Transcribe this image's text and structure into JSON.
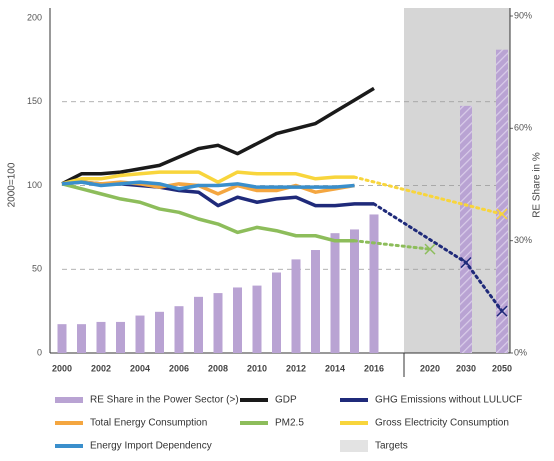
{
  "chart_data": {
    "type": "combo",
    "y_label": "2000=100",
    "y2_label": "RE Share in %",
    "categories": [
      "2000",
      null,
      "2002",
      null,
      "2004",
      null,
      "2006",
      null,
      "2008",
      null,
      "2010",
      null,
      "2012",
      null,
      "2014",
      null,
      "2016",
      "2020",
      "2030",
      "2050"
    ],
    "ylim": [
      0,
      200
    ],
    "yticks": [
      0,
      50,
      100,
      150,
      200
    ],
    "y2lim": [
      0,
      90
    ],
    "y2ticks": [
      {
        "value": 0,
        "label": "0%"
      },
      {
        "value": 30,
        "label": "30%"
      },
      {
        "value": 60,
        "label": "60%"
      },
      {
        "value": 90,
        "label": "90%"
      }
    ],
    "grid": true,
    "target_label": "Targets",
    "series": [
      {
        "name": "RE Share in the Power Sector (>)",
        "type": "bar",
        "axis": "y2",
        "color": "#b9a3d3",
        "values": [
          7.7,
          7.7,
          8.3,
          8.3,
          10,
          11,
          12.5,
          15,
          16,
          17.5,
          18,
          21.5,
          25,
          27.5,
          32,
          33,
          37,
          null,
          66,
          81
        ]
      },
      {
        "name": "GDP",
        "type": "line",
        "color": "#1a1a1a",
        "values": [
          101,
          107,
          107,
          108,
          110,
          112,
          117,
          122,
          124,
          119,
          125,
          131,
          134,
          137,
          144,
          151,
          158,
          null,
          null,
          null
        ]
      },
      {
        "name": "GHG Emissions without LULUCF",
        "type": "line",
        "color": "#1f2a7a",
        "values": [
          101,
          102,
          101,
          101,
          100,
          99,
          97,
          96,
          88,
          93,
          90,
          92,
          93,
          88,
          88,
          89,
          89,
          null,
          54,
          25
        ]
      },
      {
        "name": "Total Energy Consumption",
        "type": "line",
        "color": "#f4a640",
        "values": [
          101,
          102,
          101,
          102,
          101,
          99,
          101,
          100,
          95,
          100,
          97,
          97,
          100,
          96,
          98,
          100,
          null,
          null,
          null,
          null
        ]
      },
      {
        "name": "PM2.5",
        "type": "line",
        "color": "#8dbd5b",
        "values": [
          101,
          98,
          95,
          92,
          90,
          86,
          84,
          80,
          77,
          72,
          75,
          73,
          70,
          70,
          67,
          67,
          null,
          62,
          null,
          null
        ]
      },
      {
        "name": "Gross Electricity Consumption",
        "type": "line",
        "color": "#f8d53c",
        "values": [
          101,
          104,
          104,
          106,
          107,
          108,
          108,
          108,
          102,
          108,
          107,
          107,
          107,
          104,
          105,
          105,
          null,
          null,
          null,
          83
        ]
      },
      {
        "name": "Energy Import Dependency",
        "type": "line",
        "color": "#3a8fcc",
        "values": [
          101,
          102,
          100,
          101,
          102,
          101,
          98,
          100,
          100,
          101,
          99,
          99,
          99,
          99,
          99,
          100,
          null,
          null,
          null,
          null
        ]
      }
    ]
  }
}
